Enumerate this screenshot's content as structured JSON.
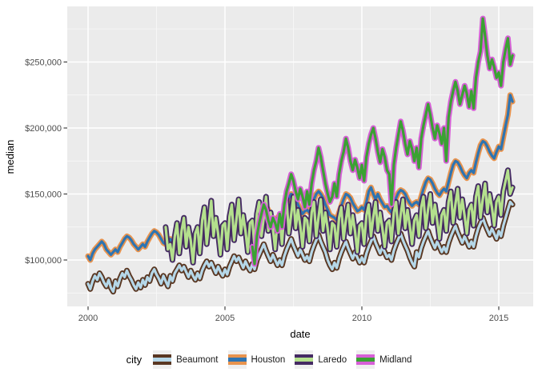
{
  "chart_data": {
    "type": "line",
    "title": "",
    "xlabel": "date",
    "ylabel": "median",
    "legend_title": "city",
    "legend_position": "bottom",
    "panel_background": "#ebebeb",
    "grid_major_color": "#ffffff",
    "grid_minor_color": "#f5f5f5",
    "axis_text_color": "#4d4d4d",
    "xticks": {
      "labels": [
        "2000",
        "2005",
        "2010",
        "2015"
      ],
      "values": [
        2000,
        2005,
        2010,
        2015
      ]
    },
    "yticks": {
      "labels": [
        "$100,000",
        "$150,000",
        "$200,000",
        "$250,000"
      ],
      "values": [
        100000,
        150000,
        200000,
        250000
      ]
    },
    "xlim": [
      1999.25,
      2016.3
    ],
    "ylim": [
      65000,
      292000
    ],
    "x_unit": "decimal year, monthly cadence",
    "y_unit": "USD (values below in thousands)",
    "grid": "white major and minor gridlines on gray panel",
    "series": [
      {
        "name": "Beaumont",
        "color_outer": "#5a3722",
        "color_inner": "#b5d7e8",
        "start_year": 2000.0,
        "frequency": "monthly",
        "values_thousand_usd": [
          82,
          78,
          84,
          88,
          85,
          90,
          87,
          83,
          80,
          85,
          79,
          76,
          84,
          80,
          86,
          90,
          87,
          92,
          88,
          85,
          81,
          78,
          83,
          79,
          85,
          81,
          87,
          84,
          90,
          93,
          89,
          86,
          82,
          88,
          84,
          80,
          88,
          84,
          90,
          93,
          96,
          92,
          95,
          91,
          87,
          92,
          88,
          85,
          90,
          86,
          92,
          96,
          99,
          95,
          98,
          94,
          90,
          95,
          91,
          88,
          93,
          89,
          95,
          99,
          103,
          99,
          102,
          98,
          94,
          99,
          95,
          92,
          97,
          93,
          100,
          104,
          108,
          112,
          107,
          103,
          99,
          104,
          100,
          96,
          100,
          96,
          103,
          108,
          112,
          116,
          111,
          107,
          103,
          108,
          104,
          100,
          103,
          99,
          106,
          111,
          115,
          119,
          114,
          110,
          106,
          100,
          96,
          93,
          98,
          94,
          101,
          106,
          110,
          114,
          109,
          105,
          101,
          106,
          102,
          98,
          102,
          98,
          105,
          110,
          114,
          118,
          113,
          109,
          105,
          110,
          106,
          102,
          104,
          100,
          107,
          112,
          116,
          120,
          115,
          111,
          107,
          102,
          98,
          95,
          106,
          102,
          109,
          114,
          118,
          122,
          117,
          113,
          109,
          114,
          110,
          106,
          110,
          106,
          113,
          118,
          122,
          126,
          121,
          117,
          113,
          118,
          114,
          110,
          114,
          110,
          118,
          124,
          128,
          132,
          127,
          123,
          119,
          124,
          120,
          116,
          122,
          118,
          126,
          132,
          138,
          144,
          142
        ]
      },
      {
        "name": "Houston",
        "color_outer": "#e8934e",
        "color_inner": "#2d74b2",
        "start_year": 2000.0,
        "frequency": "monthly",
        "values_thousand_usd": [
          103,
          100,
          105,
          108,
          110,
          112,
          114,
          112,
          108,
          106,
          104,
          106,
          108,
          106,
          110,
          113,
          116,
          118,
          117,
          115,
          112,
          110,
          108,
          110,
          112,
          110,
          114,
          117,
          120,
          122,
          121,
          119,
          116,
          113,
          112,
          114,
          116,
          113,
          117,
          121,
          124,
          126,
          125,
          122,
          119,
          117,
          115,
          117,
          118,
          116,
          120,
          124,
          127,
          129,
          128,
          126,
          122,
          120,
          118,
          121,
          122,
          120,
          125,
          129,
          132,
          135,
          134,
          131,
          128,
          125,
          123,
          126,
          128,
          126,
          131,
          135,
          139,
          142,
          141,
          138,
          134,
          131,
          129,
          132,
          134,
          132,
          138,
          143,
          147,
          150,
          149,
          146,
          142,
          138,
          135,
          137,
          138,
          136,
          141,
          146,
          150,
          152,
          150,
          147,
          142,
          138,
          134,
          133,
          132,
          130,
          136,
          141,
          146,
          150,
          149,
          147,
          143,
          140,
          137,
          138,
          140,
          138,
          144,
          152,
          155,
          150,
          146,
          150,
          146,
          143,
          140,
          141,
          138,
          136,
          142,
          147,
          151,
          153,
          152,
          150,
          146,
          143,
          141,
          143,
          144,
          142,
          148,
          154,
          159,
          162,
          161,
          158,
          154,
          151,
          149,
          152,
          154,
          152,
          159,
          166,
          172,
          175,
          174,
          171,
          167,
          164,
          162,
          166,
          168,
          166,
          174,
          181,
          187,
          190,
          189,
          186,
          182,
          179,
          177,
          182,
          186,
          184,
          193,
          202,
          210,
          225,
          220
        ]
      },
      {
        "name": "Laredo",
        "color_outer": "#452a63",
        "color_inner": "#b4e08d",
        "start_year": 2002.8333,
        "frequency": "monthly",
        "values_thousand_usd": [
          125,
          108,
          112,
          100,
          118,
          128,
          105,
          122,
          132,
          110,
          125,
          115,
          98,
          120,
          125,
          105,
          130,
          140,
          112,
          128,
          145,
          118,
          132,
          120,
          104,
          126,
          128,
          108,
          133,
          142,
          115,
          130,
          146,
          120,
          134,
          122,
          106,
          128,
          130,
          110,
          135,
          144,
          118,
          132,
          148,
          122,
          136,
          124,
          108,
          130,
          132,
          112,
          137,
          146,
          120,
          134,
          148,
          124,
          138,
          126,
          110,
          132,
          130,
          114,
          136,
          144,
          118,
          132,
          146,
          122,
          136,
          124,
          108,
          128,
          126,
          110,
          132,
          140,
          116,
          130,
          142,
          120,
          134,
          122,
          106,
          126,
          128,
          112,
          134,
          142,
          118,
          132,
          144,
          122,
          136,
          124,
          110,
          128,
          130,
          114,
          136,
          144,
          120,
          134,
          146,
          124,
          138,
          126,
          112,
          130,
          134,
          118,
          140,
          148,
          124,
          138,
          150,
          128,
          142,
          130,
          116,
          134,
          138,
          122,
          144,
          152,
          128,
          142,
          154,
          132,
          146,
          134,
          120,
          138,
          142,
          126,
          148,
          156,
          132,
          146,
          158,
          136,
          150,
          140,
          126,
          144,
          148,
          134,
          152,
          160,
          168,
          150,
          155
        ]
      },
      {
        "name": "Midland",
        "color_outer": "#d75fd7",
        "color_inner": "#3aa232",
        "start_year": 2006.0,
        "frequency": "monthly",
        "values_thousand_usd": [
          110,
          97,
          118,
          128,
          135,
          142,
          138,
          130,
          125,
          132,
          128,
          122,
          135,
          125,
          142,
          152,
          158,
          165,
          160,
          152,
          146,
          154,
          148,
          140,
          152,
          142,
          158,
          168,
          175,
          185,
          178,
          168,
          158,
          150,
          144,
          148,
          158,
          148,
          165,
          175,
          182,
          192,
          185,
          175,
          168,
          176,
          170,
          162,
          172,
          160,
          178,
          188,
          195,
          200,
          192,
          182,
          174,
          184,
          178,
          168,
          165,
          142,
          172,
          185,
          195,
          205,
          198,
          188,
          180,
          190,
          184,
          175,
          185,
          170,
          192,
          202,
          210,
          218,
          210,
          200,
          192,
          202,
          196,
          188,
          200,
          175,
          208,
          220,
          228,
          235,
          228,
          218,
          225,
          232,
          226,
          216,
          228,
          215,
          238,
          250,
          258,
          283,
          270,
          255,
          245,
          252,
          246,
          238,
          242,
          232,
          250,
          260,
          268,
          248,
          255
        ]
      }
    ]
  }
}
